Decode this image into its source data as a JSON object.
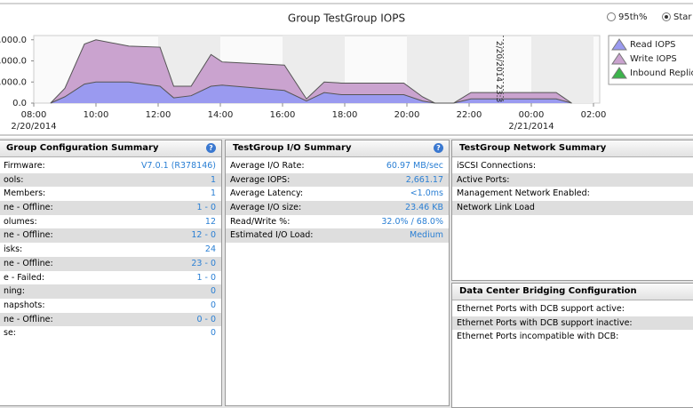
{
  "chart_data": {
    "type": "stacked_area",
    "title": "Group TestGroup IOPS",
    "x": [
      0.54,
      1.0,
      1.63,
      2.0,
      3.06,
      4.06,
      4.5,
      5.06,
      5.7,
      6.06,
      8.06,
      8.77,
      9.34,
      9.9,
      11.9,
      12.5,
      12.9,
      13.5,
      14.06,
      16.8,
      17.3
    ],
    "series": [
      {
        "name": "Read IOPS",
        "color": "#9a9af0",
        "values": [
          0,
          300,
          900,
          1000,
          1000,
          800,
          250,
          350,
          800,
          850,
          600,
          100,
          500,
          400,
          400,
          100,
          0,
          0,
          200,
          200,
          0
        ]
      },
      {
        "name": "Write IOPS",
        "color": "#caa3cf",
        "values": [
          0,
          400,
          1900,
          2000,
          1700,
          1850,
          550,
          450,
          1500,
          1100,
          1200,
          100,
          500,
          550,
          550,
          200,
          0,
          0,
          300,
          300,
          0
        ]
      }
    ],
    "extra_legend": [
      {
        "name": "Inbound Replica",
        "color": "#3cb44b"
      }
    ],
    "xlim": [
      0,
      18.2
    ],
    "xticks": [
      {
        "value": 0,
        "label": "08:00"
      },
      {
        "value": 2,
        "label": "10:00"
      },
      {
        "value": 4,
        "label": "12:00"
      },
      {
        "value": 6,
        "label": "14:00"
      },
      {
        "value": 8,
        "label": "16:00"
      },
      {
        "value": 10,
        "label": "18:00"
      },
      {
        "value": 12,
        "label": "20:00"
      },
      {
        "value": 14,
        "label": "22:00"
      },
      {
        "value": 16,
        "label": "00:00"
      },
      {
        "value": 18,
        "label": "02:00"
      }
    ],
    "x_date_labels": [
      {
        "value": 0,
        "label": "2/20/2014"
      },
      {
        "value": 16,
        "label": "2/21/2014"
      }
    ],
    "ylim": [
      0,
      3200
    ],
    "yticks": [
      {
        "value": 3000,
        "label": ",000.0"
      },
      {
        "value": 2000,
        "label": ",000.0"
      },
      {
        "value": 1000,
        "label": ",000.0"
      },
      {
        "value": 0,
        "label": "0.0"
      }
    ],
    "marker": {
      "value": 15.1,
      "label": "2/20/2014 23:3"
    },
    "options": [
      "95th%",
      "Star"
    ]
  },
  "panels": [
    {
      "title": "Group Configuration Summary",
      "rows": [
        [
          "Firmware:",
          "V7.0.1 (R378146)"
        ],
        [
          "ools:",
          "1"
        ],
        [
          "Members:",
          "1"
        ],
        [
          "ne - Offline:",
          "1 - 0"
        ],
        [
          "olumes:",
          "12"
        ],
        [
          "ne - Offline:",
          "12 - 0"
        ],
        [
          "isks:",
          "24"
        ],
        [
          "ne - Offline:",
          "23 - 0"
        ],
        [
          "e - Failed:",
          "1 - 0"
        ],
        [
          "ning:",
          "0"
        ],
        [
          "napshots:",
          "0"
        ],
        [
          "ne - Offline:",
          "0 - 0"
        ],
        [
          "se:",
          "0"
        ]
      ]
    },
    {
      "title": "TestGroup I/O Summary",
      "rows": [
        [
          "Average I/O Rate:",
          "60.97 MB/sec"
        ],
        [
          "Average IOPS:",
          "2,661.17"
        ],
        [
          "Average Latency:",
          "<1.0ms"
        ],
        [
          "Average I/O size:",
          "23.46 KB"
        ],
        [
          "Read/Write %:",
          "32.0% / 68.0%"
        ],
        [
          "Estimated I/O Load:",
          "Medium"
        ]
      ]
    },
    {
      "title": "TestGroup Network Summary",
      "rows": [
        [
          "iSCSI Connections:"
        ],
        [
          "Active Ports:"
        ],
        [
          "Management Network Enabled:"
        ],
        [
          "Network Link Load"
        ]
      ]
    },
    {
      "title": "Data Center Bridging Configuration",
      "rows": [
        [
          "Ethernet Ports with DCB support active:"
        ],
        [
          "Ethernet Ports with DCB support inactive:"
        ],
        [
          "Ethernet Ports incompatible with DCB:"
        ]
      ]
    }
  ]
}
